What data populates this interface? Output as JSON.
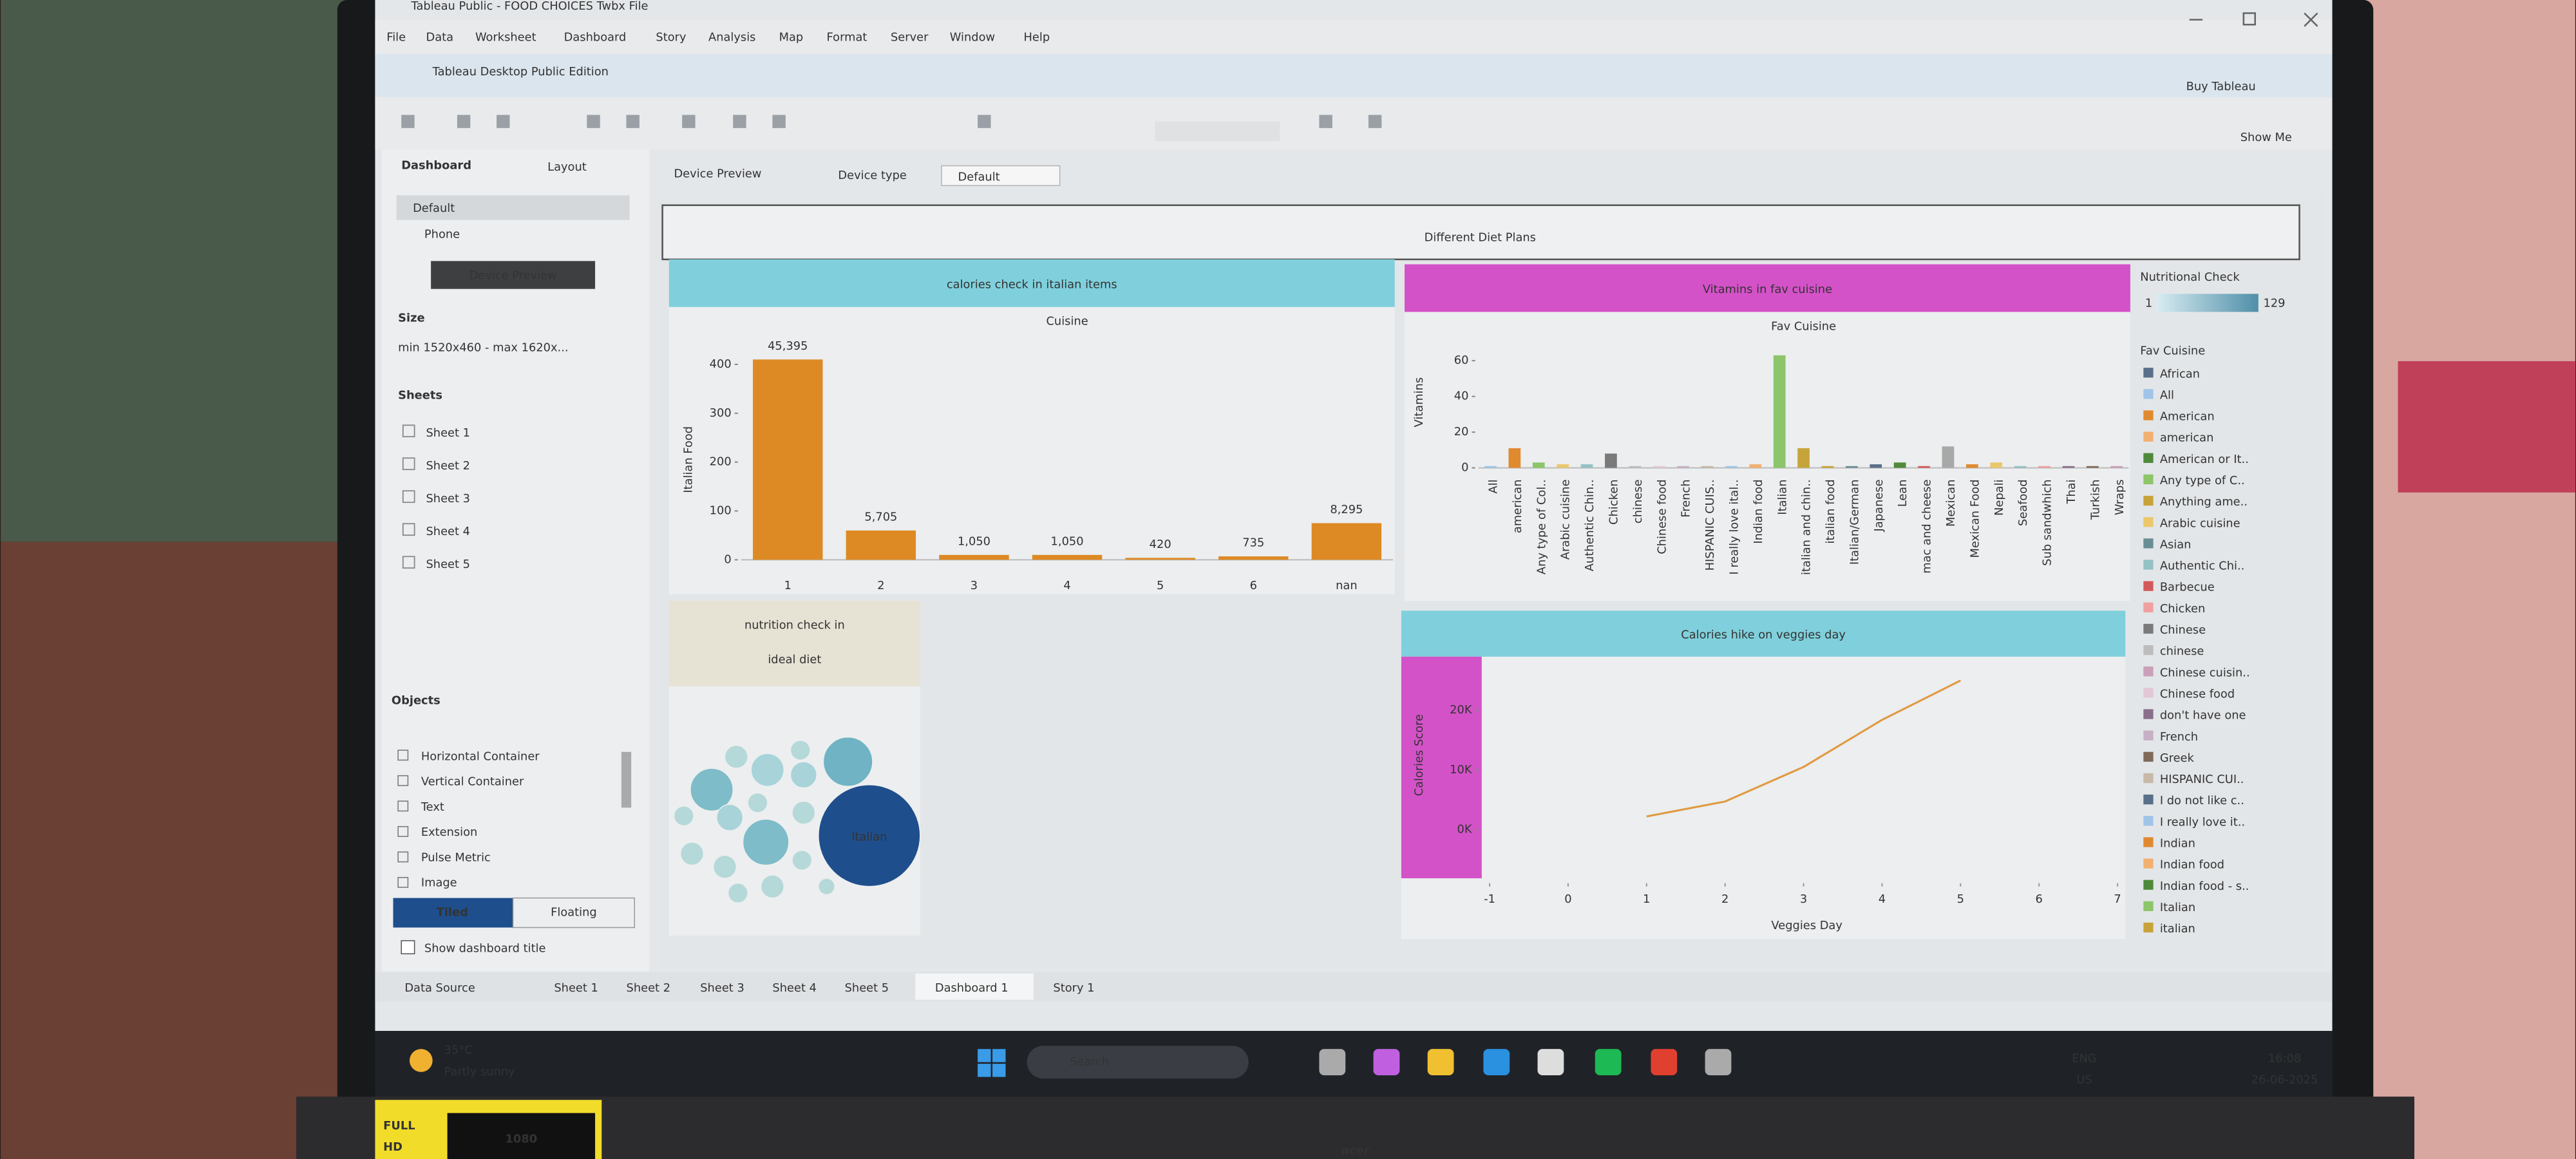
{
  "window": {
    "title": "Tableau Public - FOOD CHOICES Twbx File",
    "menu": [
      "File",
      "Data",
      "Worksheet",
      "Dashboard",
      "Story",
      "Analysis",
      "Map",
      "Format",
      "Server",
      "Window",
      "Help"
    ],
    "edition": "Tableau Desktop Public Edition",
    "buy": "Buy Tableau",
    "show_me": "Show Me"
  },
  "sidebar": {
    "tabs": [
      "Dashboard",
      "Layout"
    ],
    "devices": [
      "Default",
      "Phone"
    ],
    "device_preview": "Device Preview",
    "size_label": "Size",
    "size_value": "min 1520x460 - max 1620x...",
    "sheets_label": "Sheets",
    "sheets": [
      "Sheet 1",
      "Sheet 2",
      "Sheet 3",
      "Sheet 4",
      "Sheet 5"
    ],
    "objects_label": "Objects",
    "objects": [
      "Horizontal Container",
      "Vertical Container",
      "Text",
      "Extension",
      "Pulse Metric",
      "Image"
    ],
    "tiled": "Tiled",
    "floating": "Floating",
    "show_title": "Show dashboard title"
  },
  "canvas_bar": {
    "device_preview": "Device Preview",
    "device_type": "Device type",
    "default": "Default"
  },
  "dashboard": {
    "title": "Different Diet Plans",
    "charts": [
      {
        "type": "bar",
        "title": "calories check in italian items",
        "x_title": "Cuisine",
        "y_title": "Italian Food",
        "categories": [
          "1",
          "2",
          "3",
          "4",
          "5",
          "6",
          "nan"
        ],
        "values": [
          410,
          60,
          10,
          10,
          4,
          7,
          75
        ],
        "data_labels": [
          "45,395",
          "5,705",
          "1,050",
          "1,050",
          "420",
          "735",
          "8,295"
        ],
        "color": "#dd8a24",
        "ylim": [
          0,
          420
        ],
        "yticks": [
          0,
          100,
          200,
          300,
          400
        ],
        "grid": false
      },
      {
        "type": "bar",
        "title": "Vitamins in fav cuisine",
        "x_title": "Fav Cuisine",
        "y_title": "Vitamins",
        "categories": [
          "All",
          "american",
          "Any type of Col..",
          "Arabic cuisine",
          "Authentic Chin..",
          "Chicken",
          "chinese",
          "Chinese food",
          "French",
          "HISPANIC CUIS..",
          "I really love ital..",
          "Indian food",
          "Italian",
          "italian and chin..",
          "italian food",
          "Italian/German",
          "Japanese",
          "Lean",
          "mac and cheese",
          "Mexican",
          "Mexican Food",
          "Nepali",
          "Seafood",
          "Sub sandwhich",
          "Thai",
          "Turkish",
          "Wraps"
        ],
        "values": [
          1,
          11,
          3,
          2,
          2,
          8,
          1,
          1,
          1,
          1,
          1,
          2,
          63,
          11,
          1,
          1,
          2,
          3,
          1,
          12,
          2,
          3,
          1,
          1,
          1,
          1,
          1
        ],
        "colors": [
          "#a0c4e8",
          "#e08a30",
          "#8cc56a",
          "#eac86a",
          "#95c2c4",
          "#7a7a7a",
          "#bdbdbd",
          "#e3c7d6",
          "#c6b0c6",
          "#c7b8a8",
          "#a0c4e8",
          "#f2b070",
          "#8cc56a",
          "#c7a43a",
          "#c7a43a",
          "#6a8e96",
          "#5a6f8a",
          "#4f8a3a",
          "#d35a5a",
          "#a8a8a8",
          "#e08a30",
          "#eac86a",
          "#95c2c4",
          "#f0a0a0",
          "#8a6f8a",
          "#7f6a5a",
          "#c9a0b8"
        ],
        "ylim": [
          0,
          68
        ],
        "yticks": [
          0,
          20,
          40,
          60
        ],
        "grid": false
      },
      {
        "type": "bubble",
        "title": [
          "nutrition check in",
          "ideal diet"
        ],
        "values": [
          961,
          225,
          169,
          196,
          100,
          64,
          49,
          36,
          64,
          49,
          49,
          49,
          36,
          49,
          36,
          36,
          25,
          36
        ],
        "labels": [
          "Italian",
          null,
          null,
          null,
          null,
          null,
          null,
          null,
          null,
          null,
          null,
          null,
          null,
          null,
          null,
          null,
          null,
          null
        ],
        "colors": [
          "#1f4e8c",
          "#6fb3c4",
          "#7dbcc8",
          "#7dbcc8",
          "#a8d3d8",
          "#a8d3d8",
          "#b5d8d8",
          "#b5d8d8",
          "#a8d3d8",
          "#b5d8d8",
          "#b5d8d8",
          "#b5d8d8",
          "#b5d8d8",
          "#b5d8d8",
          "#b5d8d8",
          "#b5d8d8",
          "#b5d8d8",
          "#b5d8d8"
        ]
      },
      {
        "type": "line",
        "title": "Calories hike on veggies day",
        "x_title": "Veggies Day",
        "y_title": "Calories Score",
        "x": [
          1,
          2,
          3,
          4,
          5
        ],
        "values": [
          2200,
          4700,
          10500,
          18400,
          25000
        ],
        "color": "#e09a40",
        "xlim": [
          -1.1,
          7.1
        ],
        "xticks": [
          -1,
          0,
          1,
          2,
          3,
          4,
          5,
          6,
          7
        ],
        "ylim": [
          -9000,
          29000
        ],
        "yticks": [
          {
            "value": 0,
            "label": "0K"
          },
          {
            "value": 10000,
            "label": "10K"
          },
          {
            "value": 20000,
            "label": "20K"
          }
        ]
      }
    ],
    "legend": {
      "color_title": "Nutritional Check",
      "color_min": 1,
      "color_max": 129,
      "title": "Fav Cuisine",
      "entries": [
        "African",
        "All",
        "American",
        "american",
        "American or It..",
        "Any type of C..",
        "Anything ame..",
        "Arabic cuisine",
        "Asian",
        "Authentic Chi..",
        "Barbecue",
        "Chicken",
        "Chinese",
        "chinese",
        "Chinese cuisin..",
        "Chinese food",
        "don't have one",
        "French",
        "Greek",
        "HISPANIC CUI..",
        "I do not like c..",
        "I really love it..",
        "Indian",
        "Indian food",
        "Indian food - s..",
        "Italian",
        "italian"
      ],
      "colors": [
        "#5a6f8a",
        "#a0c4e8",
        "#e08a30",
        "#f2b070",
        "#4f8a3a",
        "#8cc56a",
        "#c7a43a",
        "#eac86a",
        "#6a8e96",
        "#95c2c4",
        "#d35a5a",
        "#f0a0a0",
        "#7a7a7a",
        "#bdbdbd",
        "#c9a0b8",
        "#e3c7d6",
        "#8a6f8a",
        "#c6b0c6",
        "#7f6a5a",
        "#c7b8a8",
        "#5a6f8a",
        "#a0c4e8",
        "#e08a30",
        "#f2b070",
        "#4f8a3a",
        "#8cc56a",
        "#c7a43a"
      ]
    }
  },
  "sheet_tabs": [
    "Data Source",
    "Sheet 1",
    "Sheet 2",
    "Sheet 3",
    "Sheet 4",
    "Sheet 5",
    "Dashboard 1",
    "Story 1"
  ],
  "taskbar": {
    "temp": "35°C",
    "weather": "Partly sunny",
    "search": "Search",
    "lang": "ENG",
    "region": "US",
    "time": "16:08",
    "date": "26-06-2025"
  },
  "badge": {
    "line1": "FULL",
    "line2": "HD",
    "res": "1080"
  },
  "brand": "acer"
}
